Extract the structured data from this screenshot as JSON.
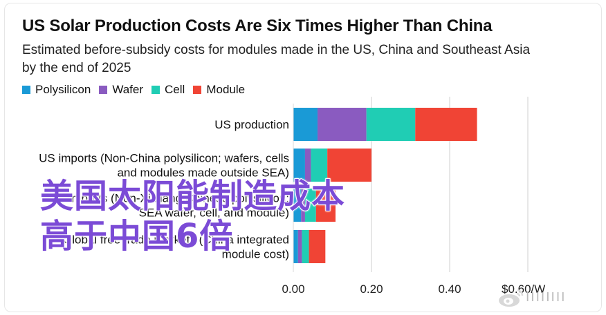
{
  "chart_data": {
    "type": "bar",
    "orientation": "horizontal",
    "stacked": true,
    "title": "US Solar Production Costs Are Six Times Higher Than China",
    "subtitle": "Estimated before-subsidy costs for modules made in the US, China and Southeast Asia by the end of 2025",
    "categories": [
      "US production",
      "US imports (Non-China polysilicon; wafers, cells and modules made outside SEA)",
      "US imports (Non-Xinjiang Chinese polysilicon; SEA wafer, cell, and module)",
      "Global free trade markets (China integrated module cost)"
    ],
    "category_lines": [
      [
        "US production"
      ],
      [
        "US imports (Non-China polysilicon; wafers, cells",
        "and modules made outside SEA)"
      ],
      [
        "US imports (Non-Xinjiang Chinese polysilicon;",
        "SEA wafer, cell, and module)"
      ],
      [
        "Global free trade markets (China integrated",
        "module cost)"
      ]
    ],
    "series": [
      {
        "name": "Polysilicon",
        "color": "#1a9ad6",
        "values": [
          0.062,
          0.03,
          0.02,
          0.012
        ]
      },
      {
        "name": "Wafer",
        "color": "#8a5bc0",
        "values": [
          0.125,
          0.015,
          0.01,
          0.01
        ]
      },
      {
        "name": "Cell",
        "color": "#20cdb4",
        "values": [
          0.125,
          0.042,
          0.028,
          0.018
        ]
      },
      {
        "name": "Module",
        "color": "#f04435",
        "values": [
          0.158,
          0.113,
          0.05,
          0.042
        ]
      }
    ],
    "xlim": [
      0,
      0.6
    ],
    "x_ticks": [
      0,
      0.2,
      0.4,
      0.6
    ],
    "x_tick_labels": [
      "0.00",
      "0.20",
      "0.40",
      "$0.60/W"
    ],
    "grid": "vertical",
    "legend": "top-left"
  },
  "overlay_text": [
    "美国太阳能制造成本",
    "高于中国6倍"
  ],
  "watermark": {
    "icon": "weibo-logo-icon",
    "text": "IIIIIIII"
  }
}
